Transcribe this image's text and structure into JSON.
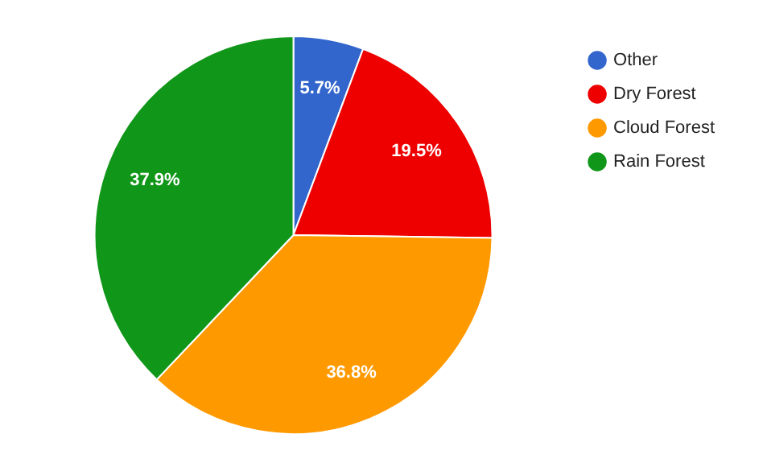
{
  "chart_data": {
    "type": "pie",
    "categories": [
      "Other",
      "Dry Forest",
      "Cloud Forest",
      "Rain Forest"
    ],
    "values": [
      5.7,
      19.5,
      36.8,
      37.9
    ],
    "colors": [
      "#3366cc",
      "#ee0000",
      "#ff9900",
      "#109618"
    ],
    "value_labels": [
      "5.7%",
      "19.5%",
      "36.8%",
      "37.9%"
    ],
    "legend": "top right"
  }
}
